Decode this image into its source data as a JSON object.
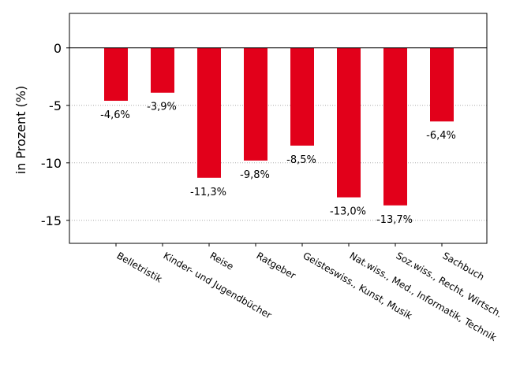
{
  "chart_data": {
    "type": "bar",
    "title": "",
    "xlabel": "",
    "ylabel": "in Prozent (%)",
    "ylim": [
      -17,
      3
    ],
    "yticks": [
      0,
      -5,
      -10,
      -15
    ],
    "ytick_labels": [
      "0",
      "-5",
      "-10",
      "-15"
    ],
    "grid": "horizontal dotted",
    "bar_color": "#e2001a",
    "categories": [
      "Belletristik",
      "Kinder- und Jugendbücher",
      "Reise",
      "Ratgeber",
      "Geisteswiss., Kunst, Musik",
      "Nat.wiss., Med., Informatik, Technik",
      "Soz.wiss., Recht, Wirtsch.",
      "Sachbuch"
    ],
    "values": [
      -4.6,
      -3.9,
      -11.3,
      -9.8,
      -8.5,
      -13.0,
      -13.7,
      -6.4
    ],
    "data_labels": [
      "-4,6%",
      "-3,9%",
      "-11,3%",
      "-9,8%",
      "-8,5%",
      "-13,0%",
      "-13,7%",
      "-6,4%"
    ]
  }
}
